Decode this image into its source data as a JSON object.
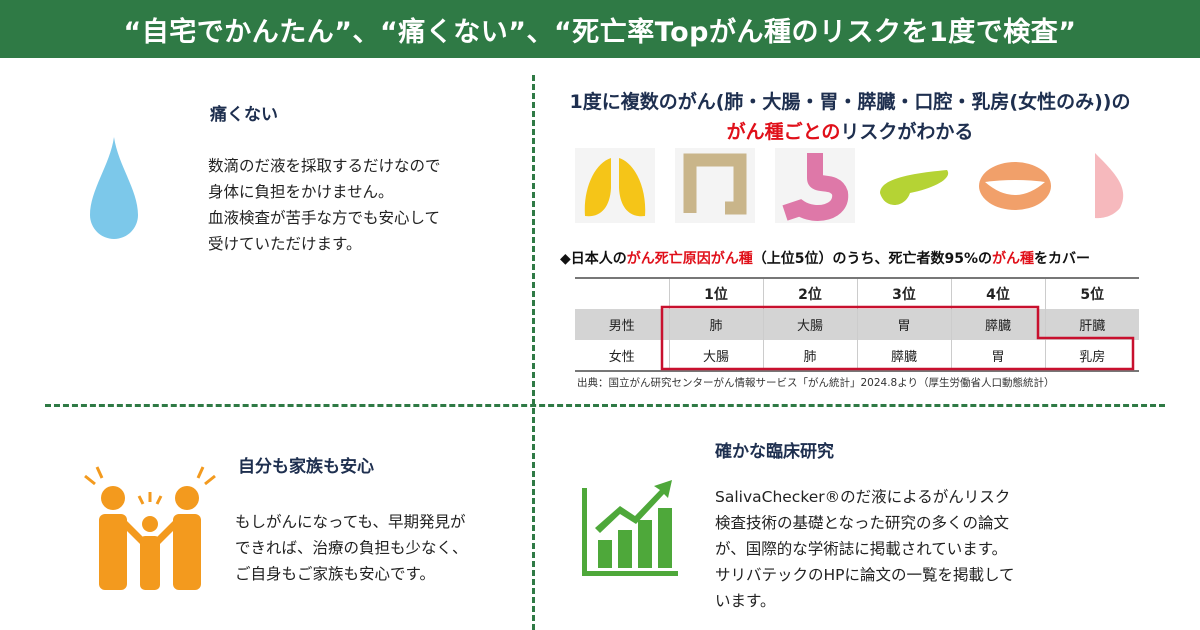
{
  "header": {
    "title": "“自宅でかんたん”、“痛くない”、“死亡率Topがん種のリスクを1度で検査”"
  },
  "painless": {
    "title": "痛くない",
    "lines": [
      "数滴のだ液を採取するだけなので",
      "身体に負担をかけません。",
      "血液検査が苦手な方でも安心して",
      "受けていただけます。"
    ],
    "icon": "water-drop-icon"
  },
  "multi": {
    "title_line1": "1度に複数のがん(肺・大腸・胃・膵臓・口腔・乳房(女性のみ))の",
    "title_line2_red": "がん種ごとの",
    "title_line2_rest": "リスクがわかる",
    "organs": [
      "lung-icon",
      "colon-icon",
      "stomach-icon",
      "pancreas-icon",
      "mouth-icon",
      "breast-icon"
    ],
    "coverage_prefix": "◆日本人の",
    "coverage_red1": "がん死亡原因がん種",
    "coverage_mid": "（上位5位）のうち、死亡者数95%の",
    "coverage_red2": "がん種",
    "coverage_suffix": "をカバー",
    "table": {
      "headers": [
        "",
        "1位",
        "2位",
        "3位",
        "4位",
        "5位"
      ],
      "rows": [
        [
          "男性",
          "肺",
          "大腸",
          "胃",
          "膵臓",
          "肝臓"
        ],
        [
          "女性",
          "大腸",
          "肺",
          "膵臓",
          "胃",
          "乳房"
        ]
      ]
    },
    "source": "出典：国立がん研究センターがん情報サービス「がん統計」2024.8より（厚生労働省人口動態統計）",
    "highlight_color": "#c8102e"
  },
  "family": {
    "title": "自分も家族も安心",
    "lines": [
      "もしがんになっても、早期発見が",
      "できれば、治療の負担も少なく、",
      "ご自身もご家族も安心です。"
    ],
    "icon": "family-icon"
  },
  "research": {
    "title": "確かな臨床研究",
    "lines": [
      "SalivaChecker®のだ液によるがんリスク",
      "検査技術の基礎となった研究の多くの論文",
      "が、国際的な学術誌に掲載されています。",
      "サリバテックのHPに論文の一覧を掲載して",
      "います。"
    ],
    "icon": "growth-chart-icon"
  },
  "colors": {
    "brand_green": "#2f7a45",
    "title_navy": "#1e2f4f",
    "accent_red": "#e0101a"
  }
}
